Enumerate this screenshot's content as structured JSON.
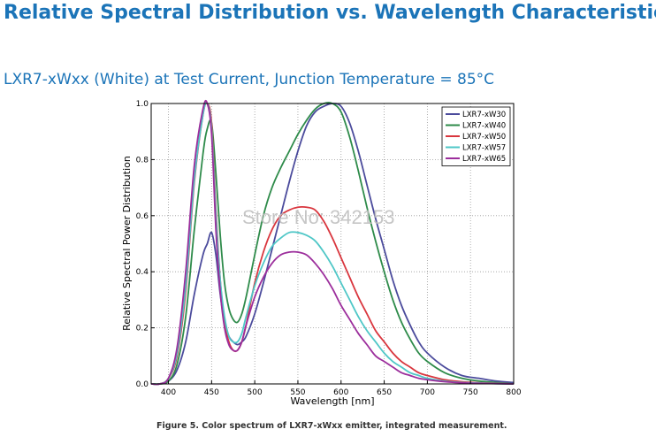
{
  "header": {
    "title": "Relative Spectral Distribution vs. Wavelength Characteristics",
    "subtitle": "LXR7-xWxx (White) at Test Current, Junction Temperature = 85°C"
  },
  "watermark": "Store No: 342153",
  "caption": "Figure 5.  Color spectrum of LXR7-xWxx emitter, integrated measurement.",
  "chart_data": {
    "type": "line",
    "title": "",
    "xlabel": "Wavelength [nm]",
    "ylabel": "Relative Spectral Power Distribution",
    "xlim": [
      380,
      800
    ],
    "ylim": [
      0,
      1.0
    ],
    "xticks": [
      400,
      450,
      500,
      550,
      600,
      650,
      700,
      750,
      800
    ],
    "yticks": [
      0.0,
      0.2,
      0.4,
      0.6,
      0.8,
      1.0
    ],
    "ytick_labels": [
      "0.0",
      "0.2",
      "0.4",
      "0.6",
      "0.8",
      "1.0"
    ],
    "grid": true,
    "legend_position": "top-right",
    "x": [
      380,
      390,
      400,
      410,
      420,
      430,
      440,
      445,
      450,
      455,
      460,
      465,
      470,
      475,
      480,
      485,
      490,
      500,
      510,
      520,
      530,
      540,
      550,
      560,
      570,
      580,
      590,
      600,
      610,
      620,
      630,
      640,
      650,
      660,
      670,
      680,
      690,
      700,
      720,
      740,
      760,
      780,
      800
    ],
    "series": [
      {
        "name": "LXR7-xW30",
        "color": "#4b4b9c",
        "values": [
          0.0,
          0.0,
          0.01,
          0.05,
          0.15,
          0.32,
          0.46,
          0.5,
          0.54,
          0.46,
          0.32,
          0.22,
          0.17,
          0.15,
          0.14,
          0.15,
          0.17,
          0.25,
          0.36,
          0.48,
          0.6,
          0.72,
          0.83,
          0.92,
          0.97,
          0.99,
          1.0,
          0.99,
          0.93,
          0.83,
          0.71,
          0.59,
          0.48,
          0.37,
          0.28,
          0.21,
          0.15,
          0.11,
          0.06,
          0.03,
          0.02,
          0.01,
          0.005
        ]
      },
      {
        "name": "LXR7-xW40",
        "color": "#2e8b4a",
        "values": [
          0.0,
          0.0,
          0.01,
          0.07,
          0.24,
          0.55,
          0.82,
          0.91,
          0.93,
          0.75,
          0.53,
          0.36,
          0.27,
          0.23,
          0.22,
          0.25,
          0.31,
          0.46,
          0.6,
          0.7,
          0.77,
          0.83,
          0.89,
          0.94,
          0.98,
          1.0,
          1.0,
          0.97,
          0.88,
          0.76,
          0.63,
          0.51,
          0.4,
          0.3,
          0.22,
          0.16,
          0.11,
          0.08,
          0.04,
          0.02,
          0.01,
          0.005,
          0.0
        ]
      },
      {
        "name": "LXR7-xW50",
        "color": "#d9363e",
        "values": [
          0.0,
          0.0,
          0.02,
          0.1,
          0.33,
          0.72,
          0.96,
          1.0,
          0.93,
          0.62,
          0.37,
          0.22,
          0.15,
          0.12,
          0.12,
          0.15,
          0.21,
          0.36,
          0.47,
          0.55,
          0.6,
          0.62,
          0.63,
          0.63,
          0.62,
          0.58,
          0.52,
          0.45,
          0.38,
          0.31,
          0.25,
          0.19,
          0.15,
          0.11,
          0.08,
          0.06,
          0.04,
          0.03,
          0.015,
          0.008,
          0.004,
          0.002,
          0.0
        ]
      },
      {
        "name": "LXR7-xW57",
        "color": "#4fc7c7",
        "values": [
          0.0,
          0.0,
          0.02,
          0.11,
          0.35,
          0.73,
          0.96,
          1.0,
          0.91,
          0.6,
          0.37,
          0.24,
          0.17,
          0.15,
          0.15,
          0.18,
          0.24,
          0.35,
          0.43,
          0.49,
          0.52,
          0.54,
          0.54,
          0.53,
          0.51,
          0.47,
          0.42,
          0.36,
          0.3,
          0.24,
          0.19,
          0.15,
          0.11,
          0.08,
          0.06,
          0.04,
          0.03,
          0.02,
          0.01,
          0.005,
          0.003,
          0.001,
          0.0
        ]
      },
      {
        "name": "LXR7-xW65",
        "color": "#9c2e9c",
        "values": [
          0.0,
          0.0,
          0.02,
          0.13,
          0.4,
          0.78,
          0.98,
          1.0,
          0.89,
          0.55,
          0.33,
          0.2,
          0.14,
          0.12,
          0.12,
          0.15,
          0.21,
          0.31,
          0.38,
          0.43,
          0.46,
          0.47,
          0.47,
          0.46,
          0.43,
          0.39,
          0.34,
          0.28,
          0.23,
          0.18,
          0.14,
          0.1,
          0.08,
          0.06,
          0.04,
          0.03,
          0.02,
          0.015,
          0.008,
          0.004,
          0.002,
          0.001,
          0.0
        ]
      }
    ]
  }
}
